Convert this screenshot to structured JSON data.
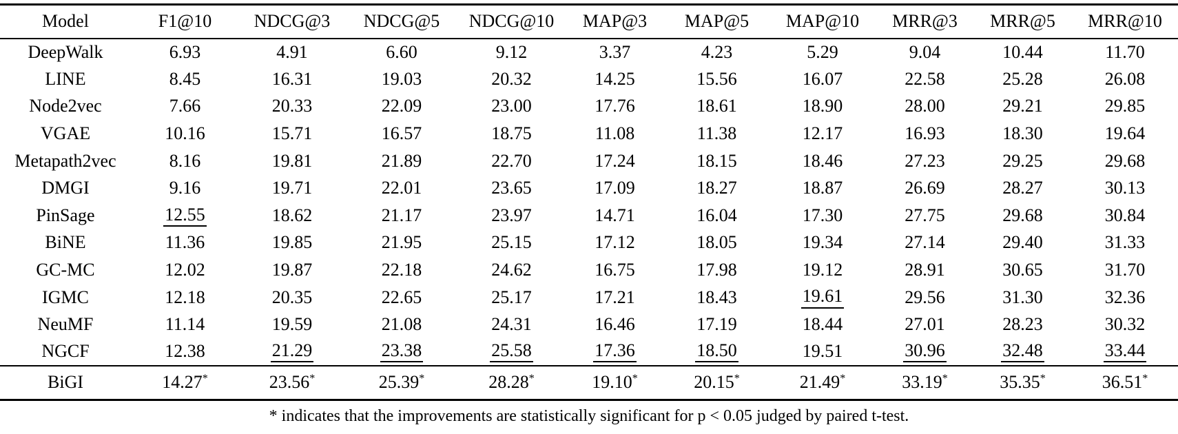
{
  "table": {
    "columns": [
      "Model",
      "F1@10",
      "NDCG@3",
      "NDCG@5",
      "NDCG@10",
      "MAP@3",
      "MAP@5",
      "MAP@10",
      "MRR@3",
      "MRR@5",
      "MRR@10"
    ],
    "rows": [
      {
        "model": "DeepWalk",
        "values": [
          "6.93",
          "4.91",
          "6.60",
          "9.12",
          "3.37",
          "4.23",
          "5.29",
          "9.04",
          "10.44",
          "11.70"
        ],
        "underlined": []
      },
      {
        "model": "LINE",
        "values": [
          "8.45",
          "16.31",
          "19.03",
          "20.32",
          "14.25",
          "15.56",
          "16.07",
          "22.58",
          "25.28",
          "26.08"
        ],
        "underlined": []
      },
      {
        "model": "Node2vec",
        "values": [
          "7.66",
          "20.33",
          "22.09",
          "23.00",
          "17.76",
          "18.61",
          "18.90",
          "28.00",
          "29.21",
          "29.85"
        ],
        "underlined": []
      },
      {
        "model": "VGAE",
        "values": [
          "10.16",
          "15.71",
          "16.57",
          "18.75",
          "11.08",
          "11.38",
          "12.17",
          "16.93",
          "18.30",
          "19.64"
        ],
        "underlined": []
      },
      {
        "model": "Metapath2vec",
        "values": [
          "8.16",
          "19.81",
          "21.89",
          "22.70",
          "17.24",
          "18.15",
          "18.46",
          "27.23",
          "29.25",
          "29.68"
        ],
        "underlined": []
      },
      {
        "model": "DMGI",
        "values": [
          "9.16",
          "19.71",
          "22.01",
          "23.65",
          "17.09",
          "18.27",
          "18.87",
          "26.69",
          "28.27",
          "30.13"
        ],
        "underlined": []
      },
      {
        "model": "PinSage",
        "values": [
          "12.55",
          "18.62",
          "21.17",
          "23.97",
          "14.71",
          "16.04",
          "17.30",
          "27.75",
          "29.68",
          "30.84"
        ],
        "underlined": [
          0
        ]
      },
      {
        "model": "BiNE",
        "values": [
          "11.36",
          "19.85",
          "21.95",
          "25.15",
          "17.12",
          "18.05",
          "19.34",
          "27.14",
          "29.40",
          "31.33"
        ],
        "underlined": []
      },
      {
        "model": "GC-MC",
        "values": [
          "12.02",
          "19.87",
          "22.18",
          "24.62",
          "16.75",
          "17.98",
          "19.12",
          "28.91",
          "30.65",
          "31.70"
        ],
        "underlined": []
      },
      {
        "model": "IGMC",
        "values": [
          "12.18",
          "20.35",
          "22.65",
          "25.17",
          "17.21",
          "18.43",
          "19.61",
          "29.56",
          "31.30",
          "32.36"
        ],
        "underlined": [
          6
        ]
      },
      {
        "model": "NeuMF",
        "values": [
          "11.14",
          "19.59",
          "21.08",
          "24.31",
          "16.46",
          "17.19",
          "18.44",
          "27.01",
          "28.23",
          "30.32"
        ],
        "underlined": []
      },
      {
        "model": "NGCF",
        "values": [
          "12.38",
          "21.29",
          "23.38",
          "25.58",
          "17.36",
          "18.50",
          "19.51",
          "30.96",
          "32.48",
          "33.44"
        ],
        "underlined": [
          1,
          2,
          3,
          4,
          5,
          7,
          8,
          9
        ]
      }
    ],
    "highlight_row": {
      "model": "BiGI",
      "values": [
        "14.27",
        "23.56",
        "25.39",
        "28.28",
        "19.10",
        "20.15",
        "21.49",
        "33.19",
        "35.35",
        "36.51"
      ],
      "starred": true
    },
    "star_symbol": "*",
    "footnote": "* indicates that the improvements are statistically significant for p < 0.05 judged by paired t-test."
  },
  "colors": {
    "text": "#000000",
    "background": "#ffffff",
    "rule": "#000000"
  }
}
